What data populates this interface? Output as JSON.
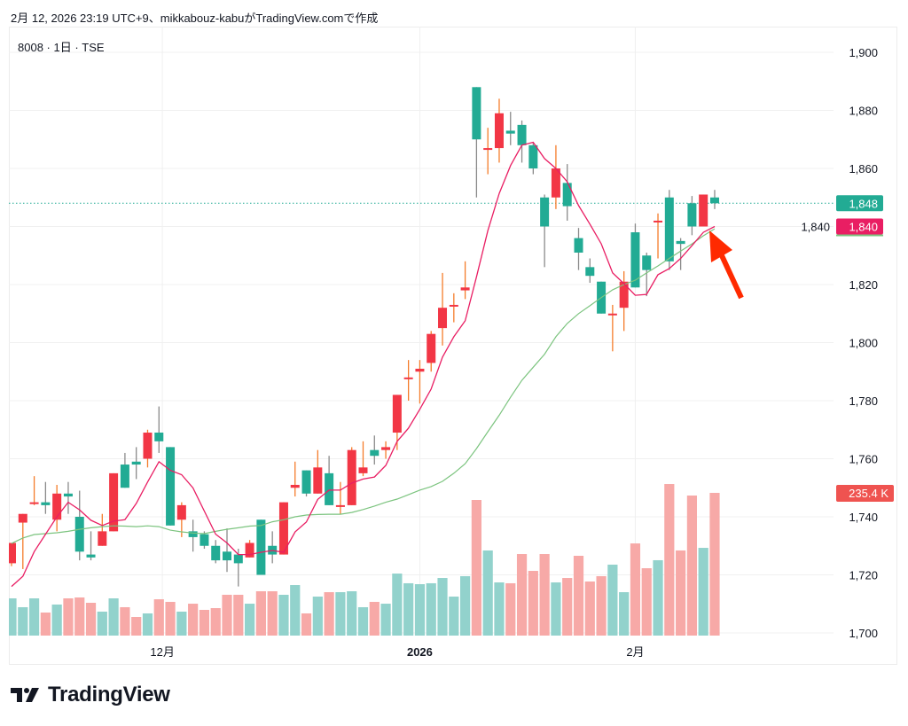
{
  "caption": "2月 12, 2026 23:19 UTC+9、mikkabouz-kabuがTradingView.comで作成",
  "symbol_line": "8008 · 1日 · TSE",
  "brand": "TradingView",
  "colors": {
    "up": "#f23645",
    "down": "#22ab94",
    "up_wick": "#f57c2a",
    "down_wick": "#8a8a8a",
    "vol_up": "#92d2cc",
    "vol_down": "#f7a9a7",
    "ma_short": "#e91e63",
    "ma_long": "#7cc47f",
    "arrow": "#ff2a00",
    "vol_tag": "#ef5350"
  },
  "chart_data": {
    "type": "candlestick",
    "ylim": [
      1700,
      1900
    ],
    "yticks": [
      "1,700",
      "1,720",
      "1,740",
      "1,760",
      "1,780",
      "1,800",
      "1,820",
      "1,840",
      "1,860",
      "1,880",
      "1,900"
    ],
    "ytick_values": [
      1700,
      1720,
      1740,
      1760,
      1780,
      1800,
      1820,
      1840,
      1860,
      1880,
      1900
    ],
    "xlabels": [
      {
        "label": "12月",
        "at_index": 13.3,
        "bold": false
      },
      {
        "label": "2026",
        "at_index": 36,
        "bold": true
      },
      {
        "label": "2月",
        "at_index": 55,
        "bold": false
      }
    ],
    "ohlc": [
      [
        1724,
        1731,
        1723,
        1731
      ],
      [
        1738,
        1741,
        1722,
        1741
      ],
      [
        1744.5,
        1754,
        1744,
        1745
      ],
      [
        1745,
        1752,
        1741,
        1744
      ],
      [
        1739,
        1751,
        1735,
        1748
      ],
      [
        1748,
        1752,
        1741,
        1747
      ],
      [
        1740,
        1749,
        1725,
        1728
      ],
      [
        1727,
        1735,
        1725,
        1726
      ],
      [
        1730,
        1741,
        1730,
        1735
      ],
      [
        1735,
        1755,
        1735,
        1755
      ],
      [
        1758,
        1762,
        1750,
        1750
      ],
      [
        1759,
        1764,
        1753,
        1758
      ],
      [
        1760,
        1770,
        1757,
        1769
      ],
      [
        1769,
        1778,
        1762,
        1766
      ],
      [
        1764,
        1764,
        1737,
        1737
      ],
      [
        1739,
        1745,
        1733,
        1744
      ],
      [
        1735,
        1739,
        1728,
        1733
      ],
      [
        1734,
        1735,
        1729,
        1730
      ],
      [
        1730,
        1732,
        1724,
        1725
      ],
      [
        1728,
        1736,
        1721,
        1725
      ],
      [
        1727,
        1729,
        1716,
        1724
      ],
      [
        1726,
        1732,
        1726,
        1731
      ],
      [
        1739,
        1739,
        1720,
        1720
      ],
      [
        1730,
        1735,
        1724,
        1727
      ],
      [
        1727,
        1745,
        1727,
        1745
      ],
      [
        1750,
        1759,
        1747,
        1751
      ],
      [
        1756,
        1756,
        1747,
        1748
      ],
      [
        1748,
        1763,
        1748,
        1757
      ],
      [
        1755,
        1761,
        1744,
        1744
      ],
      [
        1743.5,
        1752,
        1741,
        1744
      ],
      [
        1744,
        1764,
        1744,
        1763
      ],
      [
        1755,
        1766,
        1754,
        1757
      ],
      [
        1763,
        1768,
        1758,
        1761
      ],
      [
        1763,
        1766,
        1760,
        1764
      ],
      [
        1769,
        1782,
        1763,
        1782
      ],
      [
        1787.5,
        1794,
        1780,
        1788
      ],
      [
        1790,
        1794,
        1779,
        1791
      ],
      [
        1793,
        1804,
        1790,
        1803
      ],
      [
        1805,
        1824,
        1799,
        1812
      ],
      [
        1812.5,
        1817,
        1807,
        1813
      ],
      [
        1818,
        1828,
        1815,
        1819
      ],
      [
        1888,
        1888,
        1850,
        1870
      ],
      [
        1866.5,
        1874,
        1858,
        1867
      ],
      [
        1867,
        1884,
        1862,
        1879
      ],
      [
        1873,
        1879.5,
        1868,
        1872
      ],
      [
        1875,
        1876.5,
        1862,
        1868
      ],
      [
        1868,
        1869,
        1858,
        1860
      ],
      [
        1850,
        1851,
        1826,
        1840
      ],
      [
        1850,
        1868,
        1846,
        1860
      ],
      [
        1855,
        1861.5,
        1842,
        1847
      ],
      [
        1836,
        1839.5,
        1825,
        1831
      ],
      [
        1826,
        1829,
        1820.6,
        1823
      ],
      [
        1821,
        1821,
        1810,
        1810
      ],
      [
        1809.5,
        1813,
        1797,
        1810
      ],
      [
        1812,
        1824.6,
        1804,
        1821
      ],
      [
        1838,
        1841,
        1819,
        1819
      ],
      [
        1830,
        1831,
        1816,
        1825
      ],
      [
        1841.5,
        1844.5,
        1829,
        1842
      ],
      [
        1850,
        1852.6,
        1825,
        1828
      ],
      [
        1835,
        1836,
        1825,
        1834
      ],
      [
        1848,
        1850.5,
        1837,
        1840
      ],
      [
        1840,
        1851,
        1840,
        1851
      ],
      [
        1850,
        1852.6,
        1846,
        1848
      ]
    ],
    "volume_k": [
      61.4,
      46.8,
      61.4,
      38.0,
      51.2,
      61.4,
      62.9,
      54.1,
      39.5,
      61.4,
      46.8,
      30.7,
      36.6,
      59.9,
      55.6,
      39.5,
      52.6,
      42.4,
      45.3,
      67.3,
      67.3,
      52.6,
      73.1,
      73.1,
      67.3,
      83.3,
      36.6,
      64.3,
      71.6,
      71.6,
      73.1,
      46.8,
      55.6,
      52.6,
      102.3,
      86.3,
      84.8,
      86.3,
      95.0,
      64.3,
      98.0,
      223.7,
      140.4,
      87.7,
      86.3,
      134.5,
      106.7,
      134.5,
      87.7,
      95.0,
      131.6,
      89.2,
      98.0,
      117.0,
      71.6,
      152.0,
      111.1,
      124.3,
      250.0,
      140.4,
      231.0,
      144.7,
      235.4
    ],
    "ma_short": [
      1716,
      1719.5,
      1728,
      1734,
      1740,
      1745,
      1742.4,
      1738.8,
      1737,
      1738.5,
      1739,
      1744.6,
      1752,
      1759,
      1756,
      1754.5,
      1750,
      1742,
      1734,
      1731,
      1727,
      1727,
      1727.8,
      1728.4,
      1727.8,
      1734.8,
      1738.2,
      1746,
      1749.2,
      1749.2,
      1751.6,
      1753,
      1753.7,
      1757.7,
      1766,
      1770.5,
      1777,
      1784,
      1795,
      1802,
      1807.5,
      1822.7,
      1838.6,
      1851.4,
      1861,
      1868,
      1869,
      1863.4,
      1860,
      1855.4,
      1847.2,
      1840.8,
      1834,
      1824,
      1820.3,
      1816.3,
      1816.6,
      1823.4,
      1825.5,
      1829,
      1833.4,
      1838,
      1840
    ],
    "ma_long": [
      1730.8,
      1732.7,
      1733.9,
      1734.2,
      1734.5,
      1735,
      1735.7,
      1736.2,
      1736.6,
      1736.9,
      1736.8,
      1736.6,
      1736.9,
      1736.6,
      1735.4,
      1734.8,
      1734.4,
      1734.2,
      1735,
      1735.7,
      1736.2,
      1736.8,
      1737,
      1738.3,
      1739,
      1740,
      1740.6,
      1740.8,
      1740.9,
      1740.9,
      1741.5,
      1742.5,
      1743.7,
      1745,
      1746.1,
      1747.6,
      1749.2,
      1750.4,
      1752.2,
      1755,
      1758.3,
      1763.5,
      1769.3,
      1775,
      1781.2,
      1787,
      1791.5,
      1796,
      1802,
      1806.6,
      1810,
      1812.7,
      1815.5,
      1818.2,
      1820,
      1821.5,
      1824,
      1826.4,
      1829,
      1831.5,
      1834,
      1836.8,
      1839.2
    ],
    "last_price": 1848,
    "last_price_label": "1,848",
    "ma_short_label": "1,840",
    "last_volume_label": "235.4 K",
    "last_volume_k": 235.4
  }
}
